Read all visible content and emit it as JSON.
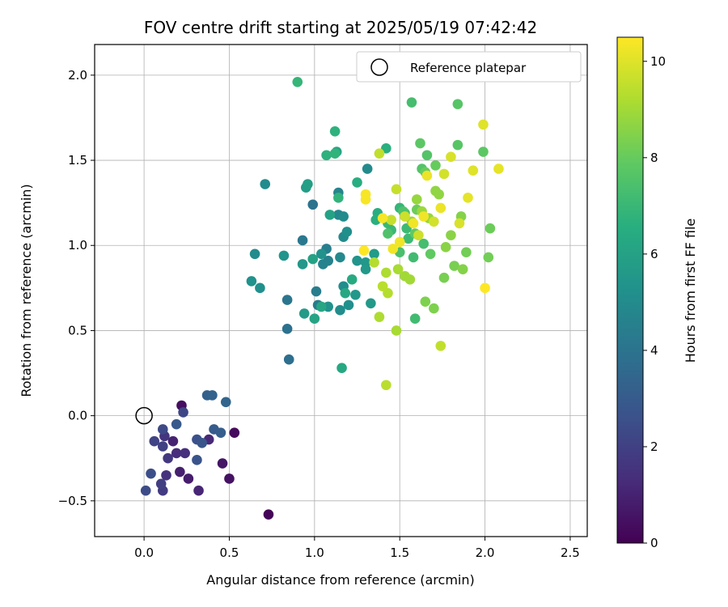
{
  "chart_data": {
    "type": "scatter",
    "title": "FOV centre drift starting at 2025/05/19 07:42:42",
    "xlabel": "Angular distance from reference (arcmin)",
    "ylabel": "Rotation from reference (arcmin)",
    "xlim": [
      -0.29,
      2.6
    ],
    "ylim": [
      -0.71,
      2.18
    ],
    "xticks": [
      0.0,
      0.5,
      1.0,
      1.5,
      2.0,
      2.5
    ],
    "xtick_labels": [
      "0.0",
      "0.5",
      "1.0",
      "1.5",
      "2.0",
      "2.5"
    ],
    "yticks": [
      -0.5,
      0.0,
      0.5,
      1.0,
      1.5,
      2.0
    ],
    "ytick_labels": [
      "−0.5",
      "0.0",
      "0.5",
      "1.0",
      "1.5",
      "2.0"
    ],
    "grid": true,
    "legend": {
      "placement": "top-right",
      "label": "Reference platepar"
    },
    "reference_point": [
      0.0,
      0.0
    ],
    "colorbar": {
      "label": "Hours from first FF file",
      "range": [
        0,
        10.5
      ],
      "ticks": [
        0,
        2,
        4,
        6,
        8,
        10
      ],
      "tick_labels": [
        "0",
        "2",
        "4",
        "6",
        "8",
        "10"
      ],
      "colormap": "viridis"
    },
    "points": [
      [
        0.73,
        -0.58,
        0.1
      ],
      [
        0.22,
        0.06,
        0.4
      ],
      [
        0.53,
        -0.1,
        0.3
      ],
      [
        0.5,
        -0.37,
        0.5
      ],
      [
        0.46,
        -0.28,
        0.6
      ],
      [
        0.26,
        -0.37,
        0.8
      ],
      [
        0.21,
        -0.33,
        0.9
      ],
      [
        0.17,
        -0.15,
        1.0
      ],
      [
        0.32,
        -0.44,
        1.1
      ],
      [
        0.38,
        -0.14,
        1.2
      ],
      [
        0.19,
        -0.22,
        1.3
      ],
      [
        0.24,
        -0.22,
        1.4
      ],
      [
        0.13,
        -0.35,
        1.5
      ],
      [
        0.12,
        -0.12,
        1.6
      ],
      [
        0.14,
        -0.25,
        1.7
      ],
      [
        0.11,
        -0.44,
        1.8
      ],
      [
        0.1,
        -0.4,
        1.9
      ],
      [
        0.11,
        -0.18,
        2.0
      ],
      [
        0.06,
        -0.15,
        2.1
      ],
      [
        0.23,
        0.02,
        2.2
      ],
      [
        0.11,
        -0.08,
        2.3
      ],
      [
        0.01,
        -0.44,
        2.4
      ],
      [
        0.04,
        -0.34,
        2.5
      ],
      [
        0.31,
        -0.14,
        2.6
      ],
      [
        0.31,
        -0.26,
        2.7
      ],
      [
        0.34,
        -0.16,
        2.8
      ],
      [
        0.19,
        -0.05,
        2.9
      ],
      [
        0.41,
        -0.08,
        3.0
      ],
      [
        0.45,
        -0.1,
        3.1
      ],
      [
        0.37,
        0.12,
        3.2
      ],
      [
        0.4,
        0.12,
        3.3
      ],
      [
        0.48,
        0.08,
        3.4
      ],
      [
        0.85,
        0.33,
        3.8
      ],
      [
        0.84,
        0.51,
        3.9
      ],
      [
        0.84,
        0.68,
        4.1
      ],
      [
        0.99,
        1.24,
        4.0
      ],
      [
        0.93,
        1.03,
        4.2
      ],
      [
        1.02,
        0.65,
        4.3
      ],
      [
        1.01,
        0.73,
        4.4
      ],
      [
        1.07,
        0.98,
        4.5
      ],
      [
        1.05,
        0.89,
        4.6
      ],
      [
        1.08,
        0.91,
        4.6
      ],
      [
        1.14,
        1.31,
        4.7
      ],
      [
        1.14,
        1.18,
        4.8
      ],
      [
        1.15,
        0.93,
        4.9
      ],
      [
        1.17,
        1.05,
        5.0
      ],
      [
        1.17,
        1.17,
        5.0
      ],
      [
        1.15,
        0.62,
        5.1
      ],
      [
        1.17,
        0.76,
        5.1
      ],
      [
        1.2,
        0.65,
        5.2
      ],
      [
        1.19,
        1.08,
        5.2
      ],
      [
        1.04,
        0.95,
        5.3
      ],
      [
        1.08,
        0.64,
        5.3
      ],
      [
        1.25,
        0.91,
        5.4
      ],
      [
        1.24,
        0.71,
        5.5
      ],
      [
        1.3,
        0.9,
        5.5
      ],
      [
        1.33,
        0.66,
        5.6
      ],
      [
        1.31,
        1.45,
        5.0
      ],
      [
        1.3,
        0.86,
        5.6
      ],
      [
        1.35,
        0.95,
        5.7
      ],
      [
        0.71,
        1.36,
        5.0
      ],
      [
        0.65,
        0.95,
        5.0
      ],
      [
        0.68,
        0.75,
        5.2
      ],
      [
        0.63,
        0.79,
        5.3
      ],
      [
        0.82,
        0.94,
        5.4
      ],
      [
        0.93,
        0.89,
        5.5
      ],
      [
        0.94,
        0.6,
        5.7
      ],
      [
        0.95,
        1.34,
        5.8
      ],
      [
        0.96,
        1.36,
        5.9
      ],
      [
        0.99,
        0.92,
        6.0
      ],
      [
        1.09,
        1.18,
        6.0
      ],
      [
        1.13,
        1.55,
        6.1
      ],
      [
        1.0,
        0.57,
        6.1
      ],
      [
        1.04,
        0.64,
        6.2
      ],
      [
        1.16,
        0.28,
        6.3
      ],
      [
        1.18,
        0.72,
        6.3
      ],
      [
        1.22,
        0.8,
        6.4
      ],
      [
        1.25,
        1.37,
        6.5
      ],
      [
        1.37,
        1.19,
        6.5
      ],
      [
        1.36,
        1.15,
        6.6
      ],
      [
        1.42,
        1.57,
        6.6
      ],
      [
        1.12,
        1.67,
        6.7
      ],
      [
        1.07,
        1.53,
        6.7
      ],
      [
        1.12,
        1.54,
        6.8
      ],
      [
        1.14,
        1.28,
        6.8
      ],
      [
        0.9,
        1.96,
        6.9
      ],
      [
        1.5,
        1.22,
        6.9
      ],
      [
        1.43,
        1.13,
        7.0
      ],
      [
        1.45,
        1.09,
        7.0
      ],
      [
        1.54,
        1.1,
        7.1
      ],
      [
        1.55,
        1.04,
        7.1
      ],
      [
        1.58,
        0.93,
        7.2
      ],
      [
        1.59,
        0.57,
        7.2
      ],
      [
        1.57,
        1.84,
        7.3
      ],
      [
        1.64,
        1.01,
        7.3
      ],
      [
        1.5,
        0.96,
        7.4
      ],
      [
        1.53,
        1.19,
        7.4
      ],
      [
        1.43,
        1.07,
        7.5
      ],
      [
        1.52,
        1.2,
        7.5
      ],
      [
        1.66,
        1.53,
        7.6
      ],
      [
        1.63,
        1.45,
        7.6
      ],
      [
        1.84,
        1.59,
        7.7
      ],
      [
        1.84,
        1.83,
        7.7
      ],
      [
        1.99,
        1.55,
        7.8
      ],
      [
        1.62,
        1.6,
        7.8
      ],
      [
        1.68,
        0.95,
        7.9
      ],
      [
        1.59,
        1.07,
        7.9
      ],
      [
        1.65,
        1.43,
        8.0
      ],
      [
        1.71,
        1.47,
        8.0
      ],
      [
        1.6,
        1.21,
        8.1
      ],
      [
        2.03,
        1.1,
        8.1
      ],
      [
        2.02,
        0.93,
        8.2
      ],
      [
        1.89,
        0.96,
        8.2
      ],
      [
        1.82,
        0.88,
        8.3
      ],
      [
        1.76,
        0.81,
        8.3
      ],
      [
        1.7,
        0.63,
        8.4
      ],
      [
        1.65,
        0.67,
        8.4
      ],
      [
        1.87,
        0.86,
        8.5
      ],
      [
        1.86,
        1.17,
        8.5
      ],
      [
        1.8,
        1.06,
        8.6
      ],
      [
        1.77,
        0.99,
        8.6
      ],
      [
        1.71,
        1.32,
        8.7
      ],
      [
        1.73,
        1.3,
        8.7
      ],
      [
        1.67,
        1.16,
        8.8
      ],
      [
        1.6,
        1.27,
        8.8
      ],
      [
        1.63,
        1.2,
        8.9
      ],
      [
        1.57,
        1.14,
        8.9
      ],
      [
        1.53,
        0.82,
        9.0
      ],
      [
        1.56,
        0.8,
        9.0
      ],
      [
        1.49,
        0.86,
        9.1
      ],
      [
        1.48,
        0.5,
        9.1
      ],
      [
        1.42,
        0.84,
        9.2
      ],
      [
        1.38,
        0.58,
        9.2
      ],
      [
        1.35,
        0.9,
        9.3
      ],
      [
        1.43,
        0.72,
        9.3
      ],
      [
        1.4,
        0.76,
        9.4
      ],
      [
        1.42,
        0.18,
        9.4
      ],
      [
        1.74,
        0.41,
        9.5
      ],
      [
        1.38,
        1.54,
        9.5
      ],
      [
        1.48,
        1.33,
        9.6
      ],
      [
        1.45,
        1.15,
        9.6
      ],
      [
        1.53,
        1.17,
        9.7
      ],
      [
        1.61,
        1.06,
        9.7
      ],
      [
        1.7,
        1.14,
        9.8
      ],
      [
        1.76,
        1.42,
        9.8
      ],
      [
        1.8,
        1.52,
        9.9
      ],
      [
        1.85,
        1.13,
        9.9
      ],
      [
        1.93,
        1.44,
        10.0
      ],
      [
        1.99,
        1.71,
        10.0
      ],
      [
        2.08,
        1.45,
        10.1
      ],
      [
        1.9,
        1.28,
        10.1
      ],
      [
        1.74,
        1.22,
        10.2
      ],
      [
        1.66,
        1.41,
        10.2
      ],
      [
        1.64,
        1.17,
        10.3
      ],
      [
        1.58,
        1.13,
        10.3
      ],
      [
        1.5,
        1.02,
        10.3
      ],
      [
        1.46,
        0.98,
        10.3
      ],
      [
        1.4,
        1.16,
        10.4
      ],
      [
        1.3,
        1.27,
        10.4
      ],
      [
        1.3,
        1.3,
        10.4
      ],
      [
        1.29,
        0.97,
        10.5
      ],
      [
        2.0,
        0.75,
        10.5
      ]
    ]
  }
}
